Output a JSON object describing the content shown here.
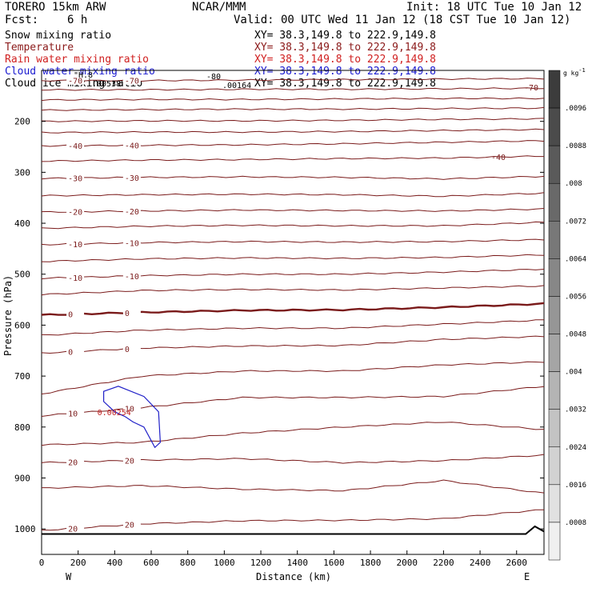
{
  "header": {
    "model": "TORERO   15km ARW",
    "center": "NCAR/MMM",
    "init": "Init: 18 UTC Tue 10 Jan 12",
    "fcst_label": "Fcst:",
    "fcst_value": "6 h",
    "valid": "Valid: 00 UTC Wed 11 Jan 12 (18 CST Tue 10 Jan 12)"
  },
  "fields": [
    {
      "name": "Snow mixing ratio",
      "xsec": "XY=  38.3,149.8 to 222.9,149.8",
      "color": "#000000",
      "xcolor": "#000000"
    },
    {
      "name": "Temperature",
      "xsec": "XY=  38.3,149.8 to 222.9,149.8",
      "color": "#8b1a1a",
      "xcolor": "#8b1a1a"
    },
    {
      "name": "Rain water mixing ratio",
      "xsec": "XY=  38.3,149.8 to 222.9,149.8",
      "color": "#d02020",
      "xcolor": "#d02020"
    },
    {
      "name": "Cloud water mixing ratio",
      "xsec": "XY=  38.3,149.8 to 222.9,149.8",
      "color": "#1a1ad0",
      "xcolor": "#1a1ad0"
    },
    {
      "name": "Cloud ice mixing ratio",
      "xsec": "XY=  38.3,149.8 to 222.9,149.8",
      "color": "#000000",
      "xcolor": "#000000"
    }
  ],
  "colorbar": {
    "unit": "g kg",
    "unit_exp": "-1",
    "labels": [
      ".0096",
      ".0088",
      ".008",
      ".0072",
      ".0064",
      ".0056",
      ".0048",
      ".004",
      ".0032",
      ".0024",
      ".0016",
      ".0008"
    ]
  },
  "chart_data": {
    "type": "line",
    "ylabel": "Pressure (hPa)",
    "xlabel": "Distance (km)",
    "left_end": "W",
    "right_end": "E",
    "x_ticks": [
      0,
      200,
      400,
      600,
      800,
      1000,
      1200,
      1400,
      1600,
      1800,
      2000,
      2200,
      2400,
      2600
    ],
    "y_ticks": [
      200,
      300,
      400,
      500,
      600,
      700,
      800,
      900,
      1000
    ],
    "xlim": [
      0,
      2750
    ],
    "ylim": [
      1050,
      100
    ],
    "temperature_contours": [
      {
        "level": -70,
        "pressure": [
          120,
          120,
          119,
          118,
          117,
          116
        ]
      },
      {
        "level": -60,
        "pressure": [
          138,
          138,
          137,
          137,
          136,
          135
        ]
      },
      {
        "level": -50,
        "pressure": [
          158,
          157,
          157,
          156,
          155,
          155
        ]
      },
      {
        "level": -50,
        "pressure": [
          178,
          177,
          176,
          176,
          175,
          174
        ]
      },
      {
        "level": -50,
        "pressure": [
          200,
          199,
          199,
          198,
          196,
          195
        ]
      },
      {
        "level": -50,
        "pressure": [
          222,
          221,
          221,
          220,
          218,
          216
        ]
      },
      {
        "level": -40,
        "pressure": [
          248,
          247,
          246,
          244,
          241,
          238
        ]
      },
      {
        "level": -30,
        "pressure": [
          278,
          276,
          275,
          273,
          272,
          268
        ]
      },
      {
        "level": -30,
        "pressure": [
          312,
          310,
          309,
          310,
          313,
          308
        ]
      },
      {
        "level": -20,
        "pressure": [
          346,
          344,
          343,
          344,
          347,
          341
        ]
      },
      {
        "level": -20,
        "pressure": [
          378,
          376,
          374,
          375,
          376,
          372
        ]
      },
      {
        "level": -10,
        "pressure": [
          410,
          406,
          404,
          405,
          405,
          398
        ]
      },
      {
        "level": -10,
        "pressure": [
          442,
          438,
          436,
          437,
          436,
          432
        ]
      },
      {
        "level": -10,
        "pressure": [
          475,
          470,
          468,
          469,
          467,
          462
        ]
      },
      {
        "level": -10,
        "pressure": [
          508,
          503,
          500,
          500,
          496,
          490
        ]
      },
      {
        "level": -10,
        "pressure": [
          540,
          532,
          530,
          531,
          527,
          523
        ]
      },
      {
        "level": 0,
        "pressure": [
          580,
          575,
          571,
          570,
          565,
          558
        ]
      },
      {
        "level": 0,
        "pressure": [
          620,
          610,
          606,
          606,
          598,
          590
        ]
      },
      {
        "level": 0,
        "pressure": [
          655,
          645,
          641,
          640,
          628,
          622
        ]
      },
      {
        "level": 10,
        "pressure": [
          735,
          700,
          690,
          690,
          678,
          672
        ]
      },
      {
        "level": 10,
        "pressure": [
          778,
          762,
          742,
          742,
          740,
          720
        ]
      },
      {
        "level": 20,
        "pressure": [
          835,
          830,
          812,
          800,
          790,
          805
        ]
      },
      {
        "level": 20,
        "pressure": [
          870,
          865,
          862,
          870,
          866,
          855
        ]
      },
      {
        "level": 20,
        "pressure": [
          920,
          915,
          922,
          925,
          905,
          930
        ]
      },
      {
        "level": 20,
        "pressure": [
          1003,
          990,
          984,
          983,
          980,
          962
        ]
      }
    ],
    "contour_x": [
      0,
      550,
      1100,
      1650,
      2200,
      2750
    ],
    "cloud_water_contours": [
      {
        "label": "0.00254",
        "x": [
          340,
          420,
          560,
          640,
          650,
          620,
          560,
          500,
          460,
          400,
          340
        ],
        "pressure": [
          730,
          720,
          740,
          770,
          830,
          840,
          800,
          790,
          780,
          770,
          750
        ]
      }
    ],
    "annotations": [
      "-80",
      "-70",
      "-60",
      "-50",
      "-40",
      "-30",
      "-20",
      "-10",
      "0",
      "10",
      "20",
      "\"H.8",
      ".00164",
      ".00538",
      "0.00254"
    ],
    "terrain_pressure": 1010
  }
}
